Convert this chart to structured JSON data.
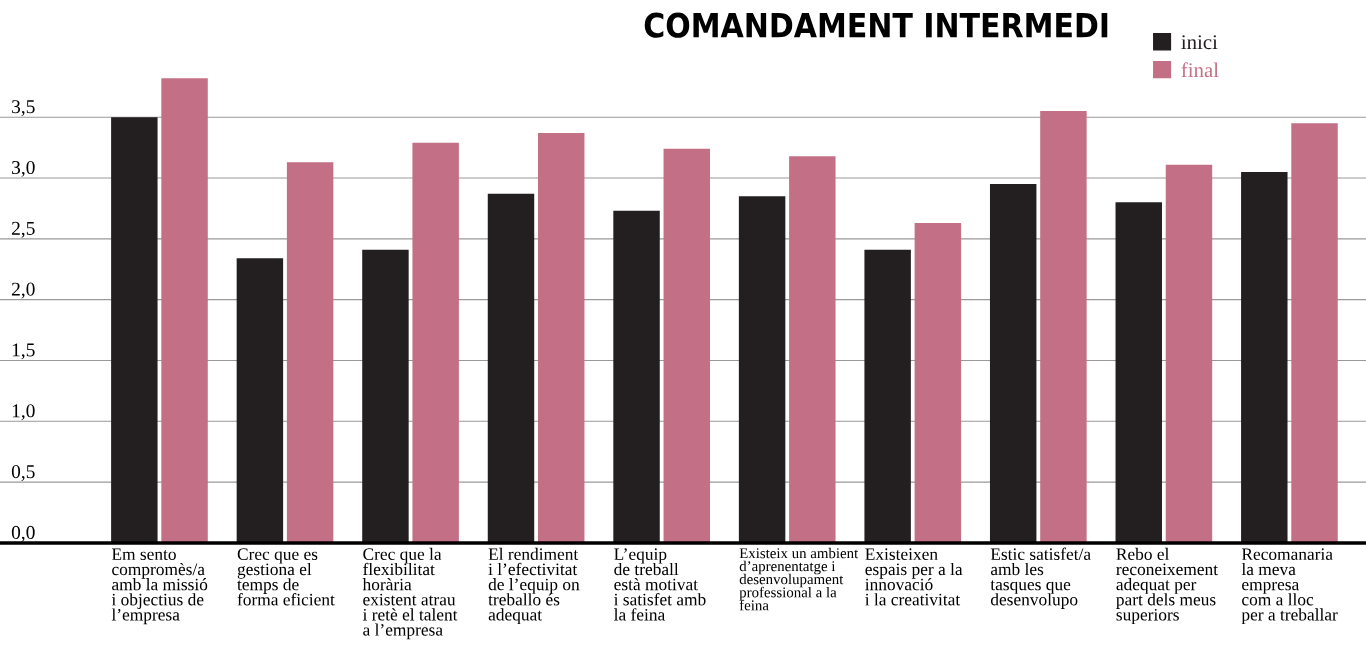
{
  "chart_data": {
    "type": "bar",
    "title": "COMANDAMENT INTERMEDI",
    "categories": [
      "Em sento\ncompromès/a\namb la missió\ni objectius de\nl’empresa",
      "Crec que es\ngestiona el\ntemps de\nforma eficient",
      "Crec que la\nflexibilitat\nhorària\nexistent atrau\ni retè el talent\na l’empresa",
      "El rendiment\ni l’efectivitat\nde l’equip on\ntreballo és\nadequat",
      "L’equip\nde treball\nestà motivat\ni satisfet amb\nla feina",
      "Existeix un ambient\nd’aprenentatge i\ndesenvolupament\nprofessional a la\nfeina",
      "Existeixen\nespais per a la\ninnovació\ni la creativitat",
      "Estic satisfet/a\namb les\ntasques que\ndesenvolupo",
      "Rebo el\nreconeixement\nadequat per\npart dels meus\nsuperiors",
      "Recomanaria\nla meva\nempresa\ncom a lloc\nper a treballar"
    ],
    "series": [
      {
        "name": "inici",
        "color": "#231f20",
        "values": [
          3.5,
          2.34,
          2.41,
          2.87,
          2.73,
          2.85,
          2.41,
          2.95,
          2.8,
          3.05
        ]
      },
      {
        "name": "final",
        "color": "#c37086",
        "values": [
          3.82,
          3.13,
          3.29,
          3.37,
          3.24,
          3.18,
          2.63,
          3.55,
          3.11,
          3.45
        ]
      }
    ],
    "ylim": [
      0,
      3.97
    ],
    "yticks": [
      {
        "value": 0,
        "label": "0,0"
      },
      {
        "value": 0.5,
        "label": "0,5"
      },
      {
        "value": 1,
        "label": "1,0"
      },
      {
        "value": 1.5,
        "label": "1,5"
      },
      {
        "value": 2,
        "label": "2,0"
      },
      {
        "value": 2.5,
        "label": "2,5"
      },
      {
        "value": 3,
        "label": "3,0"
      },
      {
        "value": 3.5,
        "label": "3,5"
      }
    ],
    "grid": "y",
    "legend": "top right"
  }
}
